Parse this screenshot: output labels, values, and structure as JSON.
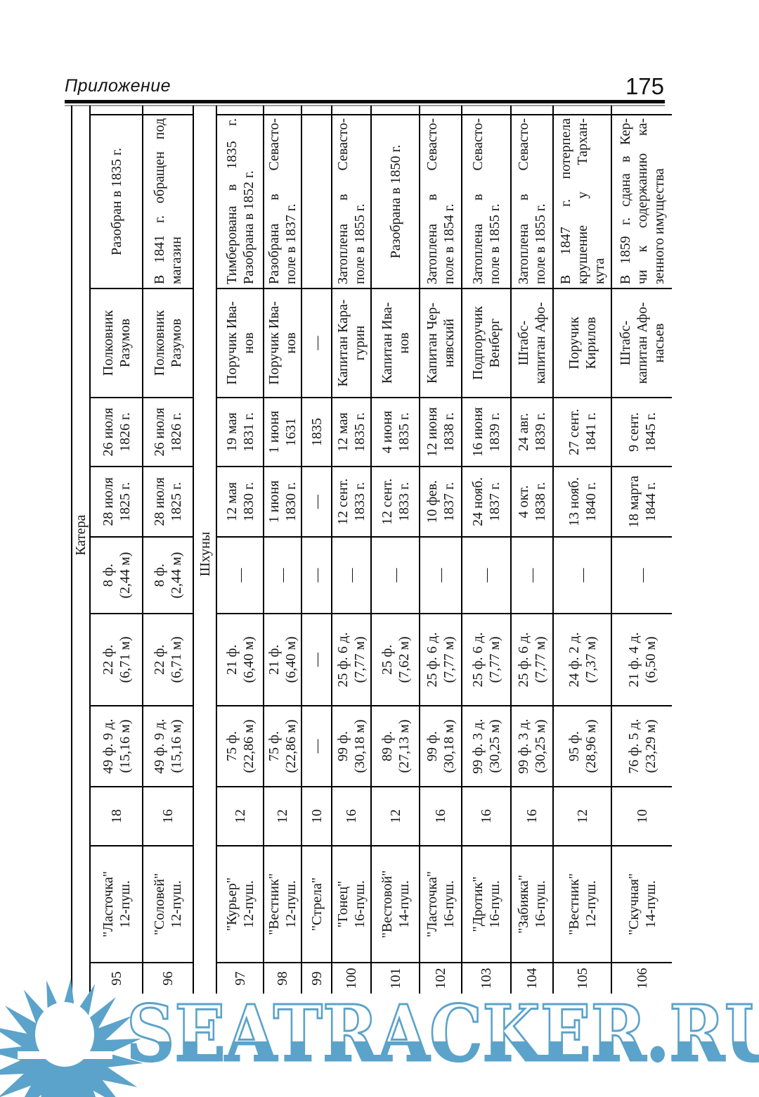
{
  "page": {
    "header_title": "Приложение",
    "page_number": "175"
  },
  "watermark": {
    "text": "SEATRACKER.RU",
    "color": "#5ba3ca"
  },
  "table": {
    "sections": [
      {
        "label": "Катера",
        "rows": [
          {
            "num": "95",
            "name": "\"Ласточка\"\n12-пуш.",
            "guns": "18",
            "length": "49 ф. 9 д.\n(15,16 м)",
            "width": "22 ф.\n(6,71 м)",
            "draft": "8 ф.\n(2,44 м)",
            "laid": "28 июля\n1825 г.",
            "launched": "26 июля\n1826 г.",
            "builder": "Полковник\nРазумов",
            "fate": "Разобран в 1835 г."
          },
          {
            "num": "96",
            "name": "\"Соловей\"\n12-пуш.",
            "guns": "16",
            "length": "49 ф. 9 д.\n(15,16 м)",
            "width": "22 ф.\n(6,71 м)",
            "draft": "8 ф.\n(2,44 м)",
            "laid": "28 июля\n1825 г.",
            "launched": "26 июля\n1826 г.",
            "builder": "Полковник\nРазумов",
            "fate": "В 1841 г. обращен под\nмагазин"
          }
        ]
      },
      {
        "label": "Шхуны",
        "rows": [
          {
            "num": "97",
            "name": "\"Курьер\"\n12-пуш.",
            "guns": "12",
            "length": "75 ф.\n(22,86 м)",
            "width": "21 ф.\n(6,40 м)",
            "draft": "—",
            "laid": "12 мая\n1830 г.",
            "launched": "19 мая\n1831 г.",
            "builder": "Поручик Ива-\nнов",
            "fate": "Тимберована в 1835 г.\nРазобрана в 1852 г."
          },
          {
            "num": "98",
            "name": "\"Вестник\"\n12-пуш.",
            "guns": "12",
            "length": "75 ф.\n(22,86 м)",
            "width": "21 ф.\n(6,40 м)",
            "draft": "—",
            "laid": "1 июня\n1830 г.",
            "launched": "1 июня\n1631",
            "builder": "Поручик Ива-\nнов",
            "fate": "Разобрана в Севасто-\nполе в 1837 г."
          },
          {
            "num": "99",
            "name": "\"Стрела\"",
            "guns": "10",
            "length": "—",
            "width": "—",
            "draft": "—",
            "laid": "—",
            "launched": "1835",
            "builder": "—",
            "fate": ""
          },
          {
            "num": "100",
            "name": "\"Гонец\"\n16-пуш.",
            "guns": "16",
            "length": "99 ф.\n(30,18 м)",
            "width": "25 ф. 6 д.\n(7,77 м)",
            "draft": "—",
            "laid": "12 сент.\n1833 г.",
            "launched": "12 мая\n1835 г.",
            "builder": "Капитан Кара-\nгурин",
            "fate": "Затоплена в Севасто-\nполе в 1855 г."
          },
          {
            "num": "101",
            "name": "\"Вестовой\"\n14-пуш.",
            "guns": "12",
            "length": "89 ф.\n(27,13 м)",
            "width": "25 ф.\n(7,62 м)",
            "draft": "—",
            "laid": "12 сент.\n1833 г.",
            "launched": "4 июня\n1835 г.",
            "builder": "Капитан Ива-\nнов",
            "fate": "Разобрана в 1850 г."
          },
          {
            "num": "102",
            "name": "\"Ласточка\"\n16-пуш.",
            "guns": "16",
            "length": "99 ф.\n(30,18 м)",
            "width": "25 ф. 6 д.\n(7,77 м)",
            "draft": "—",
            "laid": "10 фев.\n1837 г.",
            "launched": "12 июня\n1838 г.",
            "builder": "Капитан Чер-\nнявский",
            "fate": "Затоплена в Севасто-\nполе в 1854 г."
          },
          {
            "num": "103",
            "name": "\"Дротик\"\n16-пуш.",
            "guns": "16",
            "length": "99 ф. 3 д.\n(30,25 м)",
            "width": "25 ф. 6 д.\n(7,77 м)",
            "draft": "—",
            "laid": "24 нояб.\n1837 г.",
            "launched": "16 июня\n1839 г.",
            "builder": "Подпоручик\nВенберг",
            "fate": "Затоплена в Севасто-\nполе в 1855 г."
          },
          {
            "num": "104",
            "name": "\"Забияка\"\n16-пуш.",
            "guns": "16",
            "length": "99 ф. 3 д.\n(30,25 м)",
            "width": "25 ф. 6 д.\n(7,77 м)",
            "draft": "—",
            "laid": "4 окт.\n1838 г.",
            "launched": "24 авг.\n1839 г.",
            "builder": "Штабс-\nкапитан Афо-",
            "fate": "Затоплена в Севасто-\nполе в 1855 г."
          },
          {
            "num": "105",
            "name": "\"Вестник\"\n12-пуш.",
            "guns": "12",
            "length": "95 ф.\n(28,96 м)",
            "width": "24 ф. 2 д.\n(7,37 м)",
            "draft": "—",
            "laid": "13 нояб.\n1840 г.",
            "launched": "27 сент.\n1841 г.",
            "builder": "Поручик\nКирилов",
            "fate": "В 1847 г. потерпела\nкрушение у Тархан-\nкута"
          },
          {
            "num": "106",
            "name": "\"Скучная\"\n14-пуш.",
            "guns": "10",
            "length": "76 ф. 5 д.\n(23,29 м)",
            "width": "21 ф. 4 д.\n(6,50 м)",
            "draft": "—",
            "laid": "18 марта\n1844 г.",
            "launched": "9 сент.\n1845 г.",
            "builder": "Штабс-\nкапитан Афо-\nнасьев",
            "fate": "В 1859 г. сдана в Кер-\nчи к содержанию ка-\nзенного имущества"
          }
        ]
      }
    ]
  }
}
